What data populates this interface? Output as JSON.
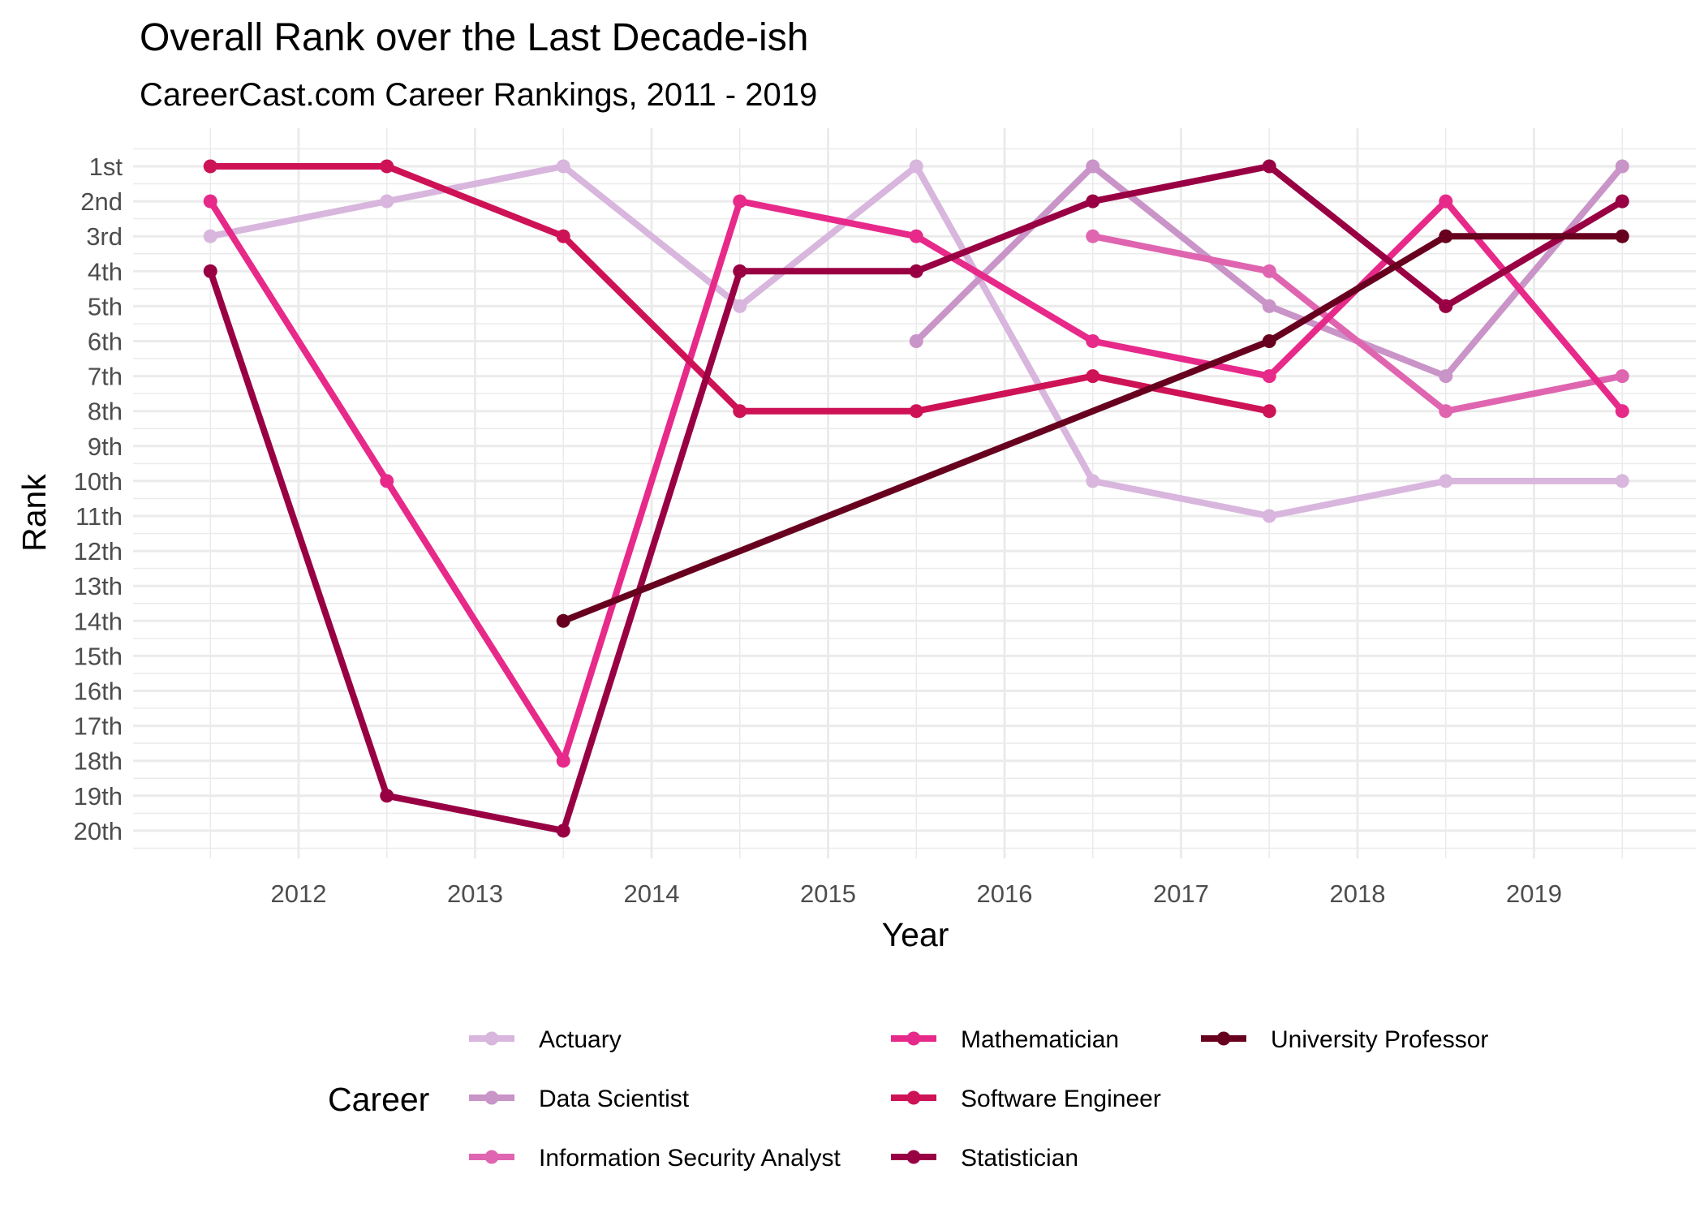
{
  "chart_data": {
    "type": "line",
    "title": "Overall Rank over the Last Decade-ish",
    "subtitle": "CareerCast.com Career Rankings, 2011 - 2019",
    "xlabel": "Year",
    "ylabel": "Rank",
    "x_ticks": [
      "2012",
      "2013",
      "2014",
      "2015",
      "2016",
      "2017",
      "2018",
      "2019"
    ],
    "y_ticks": [
      "1st",
      "2nd",
      "3rd",
      "4th",
      "5th",
      "6th",
      "7th",
      "8th",
      "9th",
      "10th",
      "11th",
      "12th",
      "13th",
      "14th",
      "15th",
      "16th",
      "17th",
      "18th",
      "19th",
      "20th"
    ],
    "xlim": [
      2010.55,
      2019.9
    ],
    "ylim": [
      1,
      20
    ],
    "y_reversed": true,
    "grid": true,
    "legend_title": "Career",
    "legend_position": "bottom",
    "series": [
      {
        "name": "Actuary",
        "color": "#d8b6dd",
        "points": [
          [
            2011.5,
            3
          ],
          [
            2012.5,
            2
          ],
          [
            2013.5,
            1
          ],
          [
            2014.5,
            5
          ],
          [
            2015.5,
            1
          ],
          [
            2016.5,
            10
          ],
          [
            2017.5,
            11
          ],
          [
            2018.5,
            10
          ],
          [
            2019.5,
            10
          ]
        ]
      },
      {
        "name": "Data Scientist",
        "color": "#c994c7",
        "points": [
          [
            2015.5,
            6
          ],
          [
            2016.5,
            1
          ],
          [
            2017.5,
            5
          ],
          [
            2018.5,
            7
          ],
          [
            2019.5,
            1
          ]
        ]
      },
      {
        "name": "Information Security Analyst",
        "color": "#df65b0",
        "points": [
          [
            2016.5,
            3
          ],
          [
            2017.5,
            4
          ],
          [
            2018.5,
            8
          ],
          [
            2019.5,
            7
          ]
        ]
      },
      {
        "name": "Mathematician",
        "color": "#e7298a",
        "points": [
          [
            2011.5,
            2
          ],
          [
            2012.5,
            10
          ],
          [
            2013.5,
            18
          ],
          [
            2014.5,
            2
          ],
          [
            2015.5,
            3
          ],
          [
            2016.5,
            6
          ],
          [
            2017.5,
            7
          ],
          [
            2018.5,
            2
          ],
          [
            2019.5,
            8
          ]
        ]
      },
      {
        "name": "Software Engineer",
        "color": "#ce1256",
        "points": [
          [
            2011.5,
            1
          ],
          [
            2012.5,
            1
          ],
          [
            2013.5,
            3
          ],
          [
            2014.5,
            8
          ],
          [
            2015.5,
            8
          ],
          [
            2016.5,
            7
          ],
          [
            2017.5,
            8
          ]
        ]
      },
      {
        "name": "Statistician",
        "color": "#980043",
        "points": [
          [
            2011.5,
            4
          ],
          [
            2012.5,
            19
          ],
          [
            2013.5,
            20
          ],
          [
            2014.5,
            4
          ],
          [
            2015.5,
            4
          ],
          [
            2016.5,
            2
          ],
          [
            2017.5,
            1
          ],
          [
            2018.5,
            5
          ],
          [
            2019.5,
            2
          ]
        ]
      },
      {
        "name": "University Professor",
        "color": "#67001f",
        "points": [
          [
            2013.5,
            14
          ],
          [
            2017.5,
            6
          ],
          [
            2018.5,
            3
          ],
          [
            2019.5,
            3
          ]
        ]
      }
    ]
  }
}
